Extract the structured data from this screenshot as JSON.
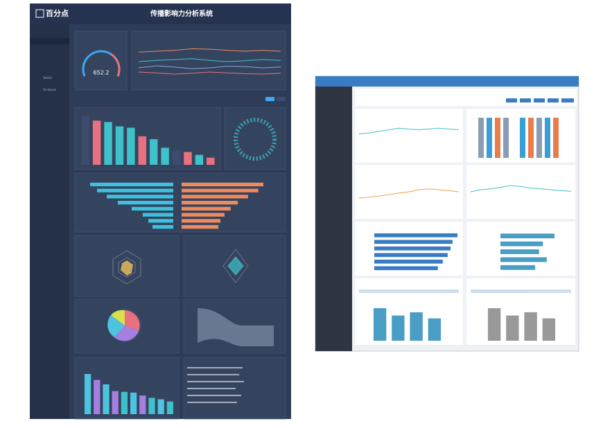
{
  "left": {
    "logo": "百分点",
    "title": "传播影响力分析系统",
    "gauge_value": 652.2,
    "menu": [
      "Twitter",
      "Facebook"
    ],
    "bars1": {
      "values": [
        34,
        31,
        30,
        27,
        26,
        20,
        18,
        12,
        10,
        9,
        7,
        5
      ],
      "colors": [
        "#3e4b6e",
        "#e9717f",
        "#3fc1c9",
        "#3fc1c9",
        "#3fc1c9",
        "#e9717f",
        "#3fc1c9",
        "#3fc1c9",
        "#3e4b6e",
        "#e9717f",
        "#3fc1c9",
        "#e9717f"
      ]
    },
    "lines": [
      {
        "color": "#f08a5d",
        "values": [
          78,
          80,
          82,
          86,
          85,
          82,
          80,
          82,
          80
        ]
      },
      {
        "color": "#3fc1c9",
        "values": [
          55,
          58,
          60,
          62,
          58,
          55,
          57,
          60,
          58
        ]
      },
      {
        "color": "#8aa4d6",
        "values": [
          40,
          45,
          42,
          38,
          40,
          44,
          43,
          40,
          42
        ]
      },
      {
        "color": "#e9717f",
        "values": [
          30,
          28,
          25,
          27,
          30,
          28,
          26,
          25,
          27
        ]
      }
    ],
    "butterfly_left": [
      60,
      55,
      48,
      40,
      30,
      22,
      18,
      15
    ],
    "butterfly_right": [
      80,
      75,
      65,
      55,
      48,
      42,
      38,
      36
    ],
    "bars2": {
      "values": [
        54,
        46,
        40,
        31,
        30,
        29,
        25,
        22,
        20,
        17
      ],
      "colors": [
        "#4dc3e0",
        "#a57fe0",
        "#4dc3e0",
        "#a57fe0",
        "#3fc1c9",
        "#4dc3e0",
        "#a57fe0",
        "#3fc1c9",
        "#4dc3e0",
        "#3fc1c9"
      ]
    }
  },
  "right": {
    "line_a": [
      60,
      62,
      66,
      70,
      74,
      72,
      70,
      72,
      74,
      72,
      70
    ],
    "line_b": [
      40,
      42,
      45,
      48,
      52,
      55,
      60,
      62,
      60,
      58,
      55
    ],
    "line_c": [
      55,
      60,
      62,
      66,
      70,
      68,
      64,
      62,
      60,
      58,
      56
    ],
    "hbars_a": [
      85,
      80,
      78,
      75,
      70,
      65
    ],
    "hbars_b": [
      70,
      55,
      50,
      60,
      45
    ],
    "bars_a": [
      80,
      62,
      70,
      55
    ],
    "bars_b": [
      80,
      62,
      70,
      55
    ]
  }
}
